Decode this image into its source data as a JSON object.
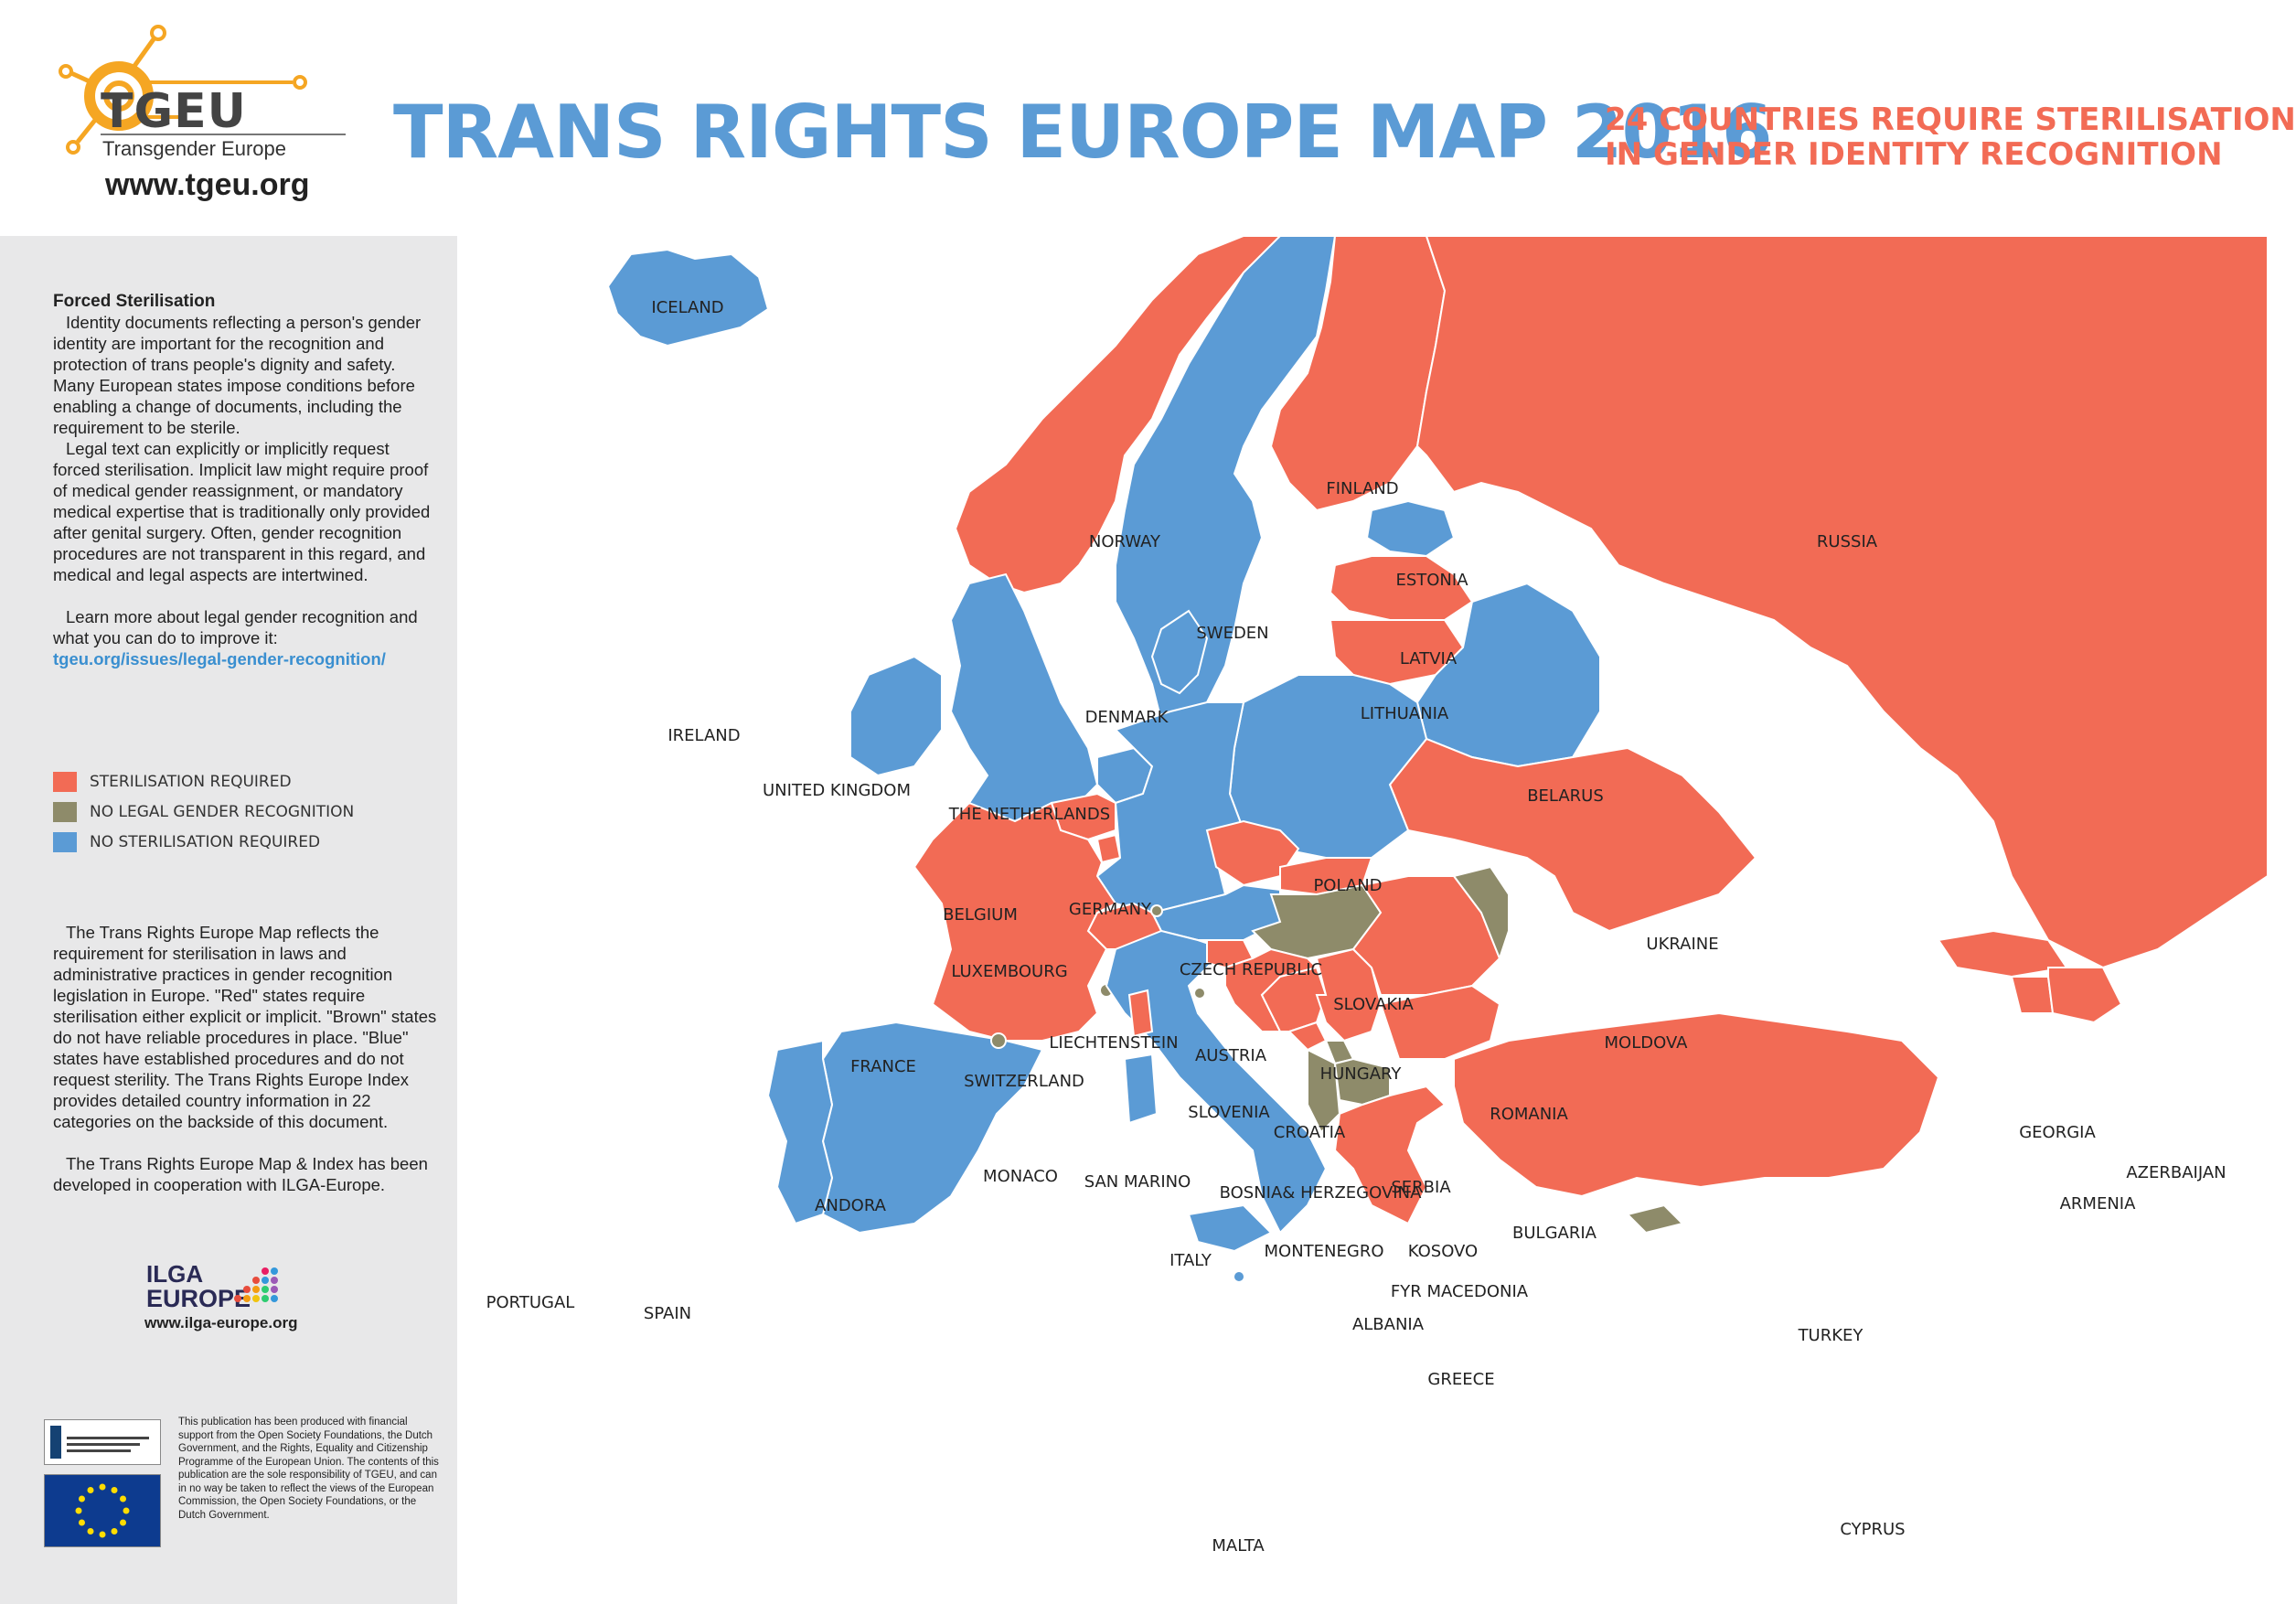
{
  "header": {
    "logo_name": "TGEU",
    "logo_subtitle": "Transgender Europe",
    "logo_url": "www.tgeu.org",
    "title": "TRANS RIGHTS EUROPE MAP 2016",
    "subtitle_line1": "24 COUNTRIES REQUIRE STERILISATION",
    "subtitle_line2": "IN GENDER IDENTITY RECOGNITION"
  },
  "sidebar": {
    "heading": "Forced Sterilisation",
    "para1": "Identity documents reflecting a person's gender identity are important for the recognition and protection of trans people's dignity and safety. Many European states impose conditions before enabling a change of documents, including the requirement to be sterile.",
    "para2": "Legal text can explicitly or implicitly request forced sterilisation. Implicit law might require proof of medical gender reassignment, or mandatory medical expertise that is traditionally only provided after genital surgery. Often, gender recognition procedures are not transparent in this regard, and medical and legal aspects are intertwined.",
    "para3": "Learn more about legal gender recognition and what you can do to improve it:",
    "link": "tgeu.org/issues/legal-gender-recognition/",
    "para4": "The Trans Rights Europe Map reflects the requirement for sterilisation in laws and administrative practices in gender recognition legislation in Europe. \"Red\" states require sterilisation either explicit or implicit. \"Brown\" states do not have reliable procedures in place. \"Blue\" states have established procedures and do not request sterility. The Trans Rights Europe Index provides detailed country information in 22 categories on the backside of this document.",
    "para5": "The Trans Rights Europe Map & Index has been developed in cooperation with ILGA-Europe.",
    "ilga_line1": "ILGA",
    "ilga_line2": "EUROPE",
    "ilga_url": "www.ilga-europe.org",
    "fine_print": "This publication has been produced with financial support from the Open Society Foundations, the Dutch Government, and the Rights, Equality and Citizenship Programme of the European Union. The contents of this publication are the sole responsibility of TGEU, and can in no way be taken to reflect the views of the European Commission, the Open Society Foundations, or the Dutch Government."
  },
  "legend": [
    {
      "label": "STERILISATION REQUIRED",
      "color": "#f26b55"
    },
    {
      "label": "NO LEGAL GENDER RECOGNITION",
      "color": "#8e8b6a"
    },
    {
      "label": "NO STERILISATION REQUIRED",
      "color": "#5b9bd5"
    }
  ],
  "colors": {
    "red": "#f26b55",
    "brown": "#8e8b6a",
    "blue": "#5b9bd5"
  },
  "countries": [
    {
      "name": "ICELAND",
      "status": "blue"
    },
    {
      "name": "NORWAY",
      "status": "red"
    },
    {
      "name": "SWEDEN",
      "status": "blue"
    },
    {
      "name": "FINLAND",
      "status": "red"
    },
    {
      "name": "RUSSIA",
      "status": "red"
    },
    {
      "name": "ESTONIA",
      "status": "blue"
    },
    {
      "name": "LATVIA",
      "status": "red"
    },
    {
      "name": "LITHUANIA",
      "status": "red"
    },
    {
      "name": "DENMARK",
      "status": "blue"
    },
    {
      "name": "IRELAND",
      "status": "blue"
    },
    {
      "name": "UNITED KINGDOM",
      "status": "blue"
    },
    {
      "name": "THE NETHERLANDS",
      "status": "blue"
    },
    {
      "name": "BELGIUM",
      "status": "red"
    },
    {
      "name": "LUXEMBOURG",
      "status": "red"
    },
    {
      "name": "GERMANY",
      "status": "blue"
    },
    {
      "name": "POLAND",
      "status": "blue"
    },
    {
      "name": "BELARUS",
      "status": "blue"
    },
    {
      "name": "UKRAINE",
      "status": "red"
    },
    {
      "name": "CZECH REPUBLIC",
      "status": "red"
    },
    {
      "name": "SLOVAKIA",
      "status": "red"
    },
    {
      "name": "FRANCE",
      "status": "red"
    },
    {
      "name": "SWITZERLAND",
      "status": "red"
    },
    {
      "name": "LIECHTENSTEIN",
      "status": "brown"
    },
    {
      "name": "AUSTRIA",
      "status": "blue"
    },
    {
      "name": "HUNGARY",
      "status": "brown"
    },
    {
      "name": "MOLDOVA",
      "status": "brown"
    },
    {
      "name": "ROMANIA",
      "status": "red"
    },
    {
      "name": "SLOVENIA",
      "status": "red"
    },
    {
      "name": "CROATIA",
      "status": "red"
    },
    {
      "name": "BOSNIA& HERZEGOVINA",
      "status": "red"
    },
    {
      "name": "SERBIA",
      "status": "red"
    },
    {
      "name": "MONTENEGRO",
      "status": "red"
    },
    {
      "name": "KOSOVO",
      "status": "brown"
    },
    {
      "name": "FYR MACEDONIA",
      "status": "brown"
    },
    {
      "name": "ALBANIA",
      "status": "brown"
    },
    {
      "name": "BULGARIA",
      "status": "red"
    },
    {
      "name": "GREECE",
      "status": "red"
    },
    {
      "name": "TURKEY",
      "status": "red"
    },
    {
      "name": "CYPRUS",
      "status": "brown"
    },
    {
      "name": "GEORGIA",
      "status": "red"
    },
    {
      "name": "ARMENIA",
      "status": "red"
    },
    {
      "name": "AZERBAIJAN",
      "status": "red"
    },
    {
      "name": "MONACO",
      "status": "brown"
    },
    {
      "name": "SAN MARINO",
      "status": "brown"
    },
    {
      "name": "ANDORA",
      "status": "brown"
    },
    {
      "name": "ITALY",
      "status": "blue"
    },
    {
      "name": "PORTUGAL",
      "status": "blue"
    },
    {
      "name": "SPAIN",
      "status": "blue"
    },
    {
      "name": "MALTA",
      "status": "blue"
    }
  ]
}
